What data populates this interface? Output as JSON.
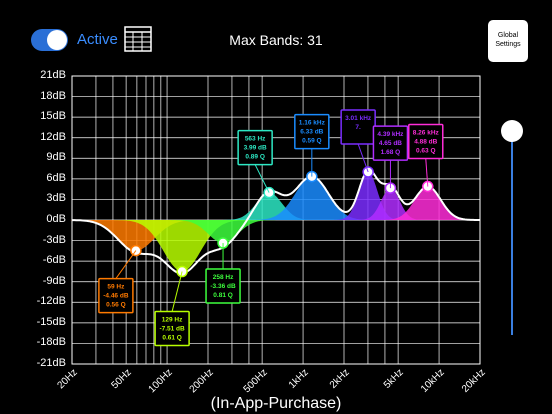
{
  "header": {
    "active_label": "Active",
    "title": "Max Bands: 31",
    "global_settings_line1": "Global",
    "global_settings_line2": "Settings",
    "toggle_on": true
  },
  "footer": {
    "iap_label": "(In-App-Purchase)"
  },
  "colors": {
    "accent": "#2a6fd6",
    "curve": "#ffffff",
    "grid": "#ffffff"
  },
  "axis": {
    "y_labels": [
      "21dB",
      "18dB",
      "15dB",
      "12dB",
      "9dB",
      "6dB",
      "3dB",
      "0dB",
      "-3dB",
      "-6dB",
      "-9dB",
      "-12dB",
      "-15dB",
      "-18dB",
      "-21dB"
    ],
    "x_labels": [
      "20Hz",
      "50Hz",
      "100Hz",
      "200Hz",
      "500Hz",
      "1kHz",
      "2kHz",
      "5kHz",
      "10kHz",
      "20kHz"
    ]
  },
  "chart_data": {
    "type": "line",
    "x_scale": "log",
    "xlim": [
      20,
      20000
    ],
    "ylim": [
      -21,
      21
    ],
    "bands": [
      {
        "freq": 59,
        "freq_label": "59 Hz",
        "gain": -4.46,
        "gain_label": "-4.46 dB",
        "q_label": "0.56 Q",
        "color": "#ff7a00"
      },
      {
        "freq": 129,
        "freq_label": "129 Hz",
        "gain": -7.51,
        "gain_label": "-7.51 dB",
        "q_label": "0.61 Q",
        "color": "#b8ff00"
      },
      {
        "freq": 258,
        "freq_label": "258 Hz",
        "gain": -3.36,
        "gain_label": "-3.36 dB",
        "q_label": "0.81 Q",
        "color": "#3dff3d"
      },
      {
        "freq": 563,
        "freq_label": "563 Hz",
        "gain": 3.99,
        "gain_label": "3.99 dB",
        "q_label": "0.89 Q",
        "color": "#2de8c4"
      },
      {
        "freq": 1160,
        "freq_label": "1.16 kHz",
        "gain": 6.33,
        "gain_label": "6.33 dB",
        "q_label": "0.59 Q",
        "color": "#1a8cff"
      },
      {
        "freq": 3010,
        "freq_label": "3.01 kHz",
        "gain": 7.0,
        "gain_label": "7.",
        "q_label": "",
        "color": "#7a2dff"
      },
      {
        "freq": 4390,
        "freq_label": "4.39 kHz",
        "gain": 4.65,
        "gain_label": "4.65 dB",
        "q_label": "1.68 Q",
        "color": "#b02dff"
      },
      {
        "freq": 8260,
        "freq_label": "8.26 kHz",
        "gain": 4.88,
        "gain_label": "4.88 dB",
        "q_label": "0.63 Q",
        "color": "#ff2dd8"
      }
    ]
  }
}
